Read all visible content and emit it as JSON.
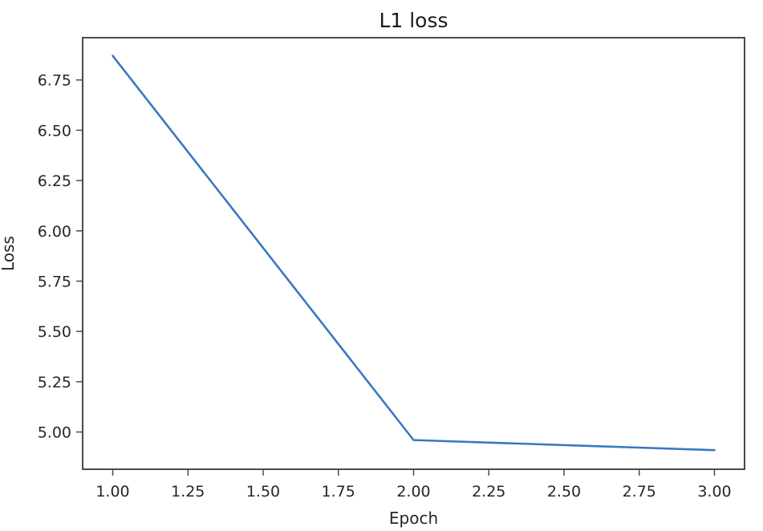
{
  "chart_data": {
    "type": "line",
    "title": "L1 loss",
    "xlabel": "Epoch",
    "ylabel": "Loss",
    "xlim": [
      0.9,
      3.1
    ],
    "ylim": [
      4.815,
      6.96
    ],
    "xticks": [
      1.0,
      1.25,
      1.5,
      1.75,
      2.0,
      2.25,
      2.5,
      2.75,
      3.0
    ],
    "xtick_labels": [
      "1.00",
      "1.25",
      "1.50",
      "1.75",
      "2.00",
      "2.25",
      "2.50",
      "2.75",
      "3.00"
    ],
    "yticks": [
      5.0,
      5.25,
      5.5,
      5.75,
      6.0,
      6.25,
      6.5,
      6.75
    ],
    "ytick_labels": [
      "5.00",
      "5.25",
      "5.50",
      "5.75",
      "6.00",
      "6.25",
      "6.50",
      "6.75"
    ],
    "grid": false,
    "series": [
      {
        "x": [
          1,
          2,
          3
        ],
        "y": [
          6.87,
          4.96,
          4.91
        ],
        "color": "#3a78c2"
      }
    ]
  }
}
